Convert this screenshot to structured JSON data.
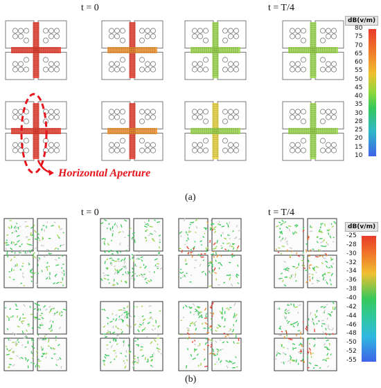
{
  "panel_a": {
    "time_labels": [
      "t = 0",
      "t = T/4"
    ],
    "annotation": "Horizontal Aperture",
    "caption": "(a)",
    "colorbar": {
      "unit": "dB(v/m)",
      "ticks": [
        "80",
        "75",
        "70",
        "65",
        "60",
        "55",
        "50",
        "45",
        "40",
        "35",
        "30",
        "28",
        "25",
        "20",
        "15",
        "10"
      ]
    }
  },
  "panel_b": {
    "time_labels": [
      "t = 0",
      "t = T/4"
    ],
    "caption": "(b)",
    "colorbar": {
      "unit": "dB(v/m)",
      "ticks": [
        "-25",
        "-28",
        "-30",
        "-32",
        "-34",
        "-36",
        "-38",
        "-40",
        "-42",
        "-44",
        "-46",
        "-48",
        "-50",
        "-52",
        "-55"
      ]
    }
  },
  "colors": {
    "annotation": "#e8141c",
    "cb_top": "#e83a2a",
    "cb_mid": "#36c85a",
    "cb_bottom": "#3e63e8"
  }
}
